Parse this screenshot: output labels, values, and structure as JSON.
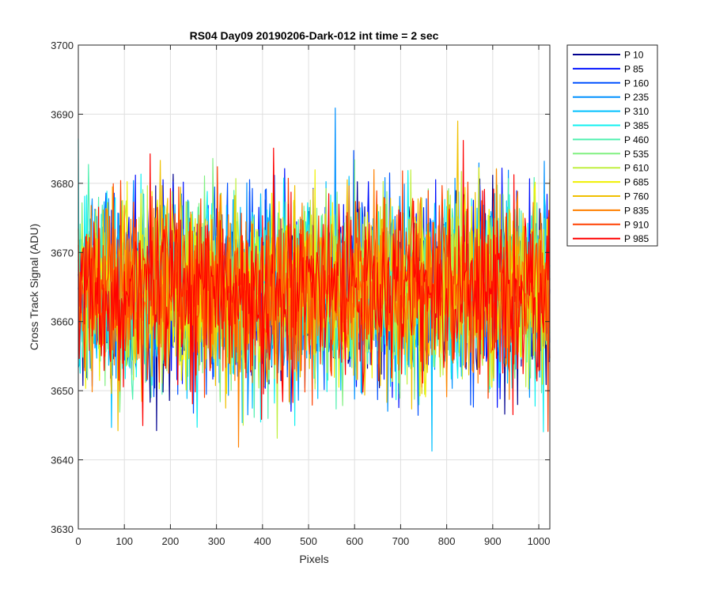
{
  "chart_data": {
    "type": "line",
    "title": "RS04 Day09 20190206-Dark-012 int time = 2 sec",
    "xlabel": "Pixels",
    "ylabel": "Cross Track Signal (ADU)",
    "xlim": [
      0,
      1024
    ],
    "ylim": [
      3630,
      3700
    ],
    "xticks": [
      0,
      100,
      200,
      300,
      400,
      500,
      600,
      700,
      800,
      900,
      1000
    ],
    "yticks": [
      3630,
      3640,
      3650,
      3660,
      3670,
      3680,
      3690,
      3700
    ],
    "grid": true,
    "legend_placement": "outside-right",
    "noise_model": {
      "mean": 3664.5,
      "std": 6.5,
      "clip_min": 3636,
      "clip_max": 3692
    },
    "series": [
      {
        "name": "P 10",
        "color": "#00008F"
      },
      {
        "name": "P 85",
        "color": "#0010FF"
      },
      {
        "name": "P 160",
        "color": "#0050FF"
      },
      {
        "name": "P 235",
        "color": "#0090FF"
      },
      {
        "name": "P 310",
        "color": "#00C0FF"
      },
      {
        "name": "P 385",
        "color": "#10F0F0"
      },
      {
        "name": "P 460",
        "color": "#50F0B0"
      },
      {
        "name": "P 535",
        "color": "#80F080"
      },
      {
        "name": "P 610",
        "color": "#C0F040"
      },
      {
        "name": "P 685",
        "color": "#F0F000"
      },
      {
        "name": "P 760",
        "color": "#F0C000"
      },
      {
        "name": "P 835",
        "color": "#FF8000"
      },
      {
        "name": "P 910",
        "color": "#FF4000"
      },
      {
        "name": "P 985",
        "color": "#FF0000"
      }
    ]
  }
}
